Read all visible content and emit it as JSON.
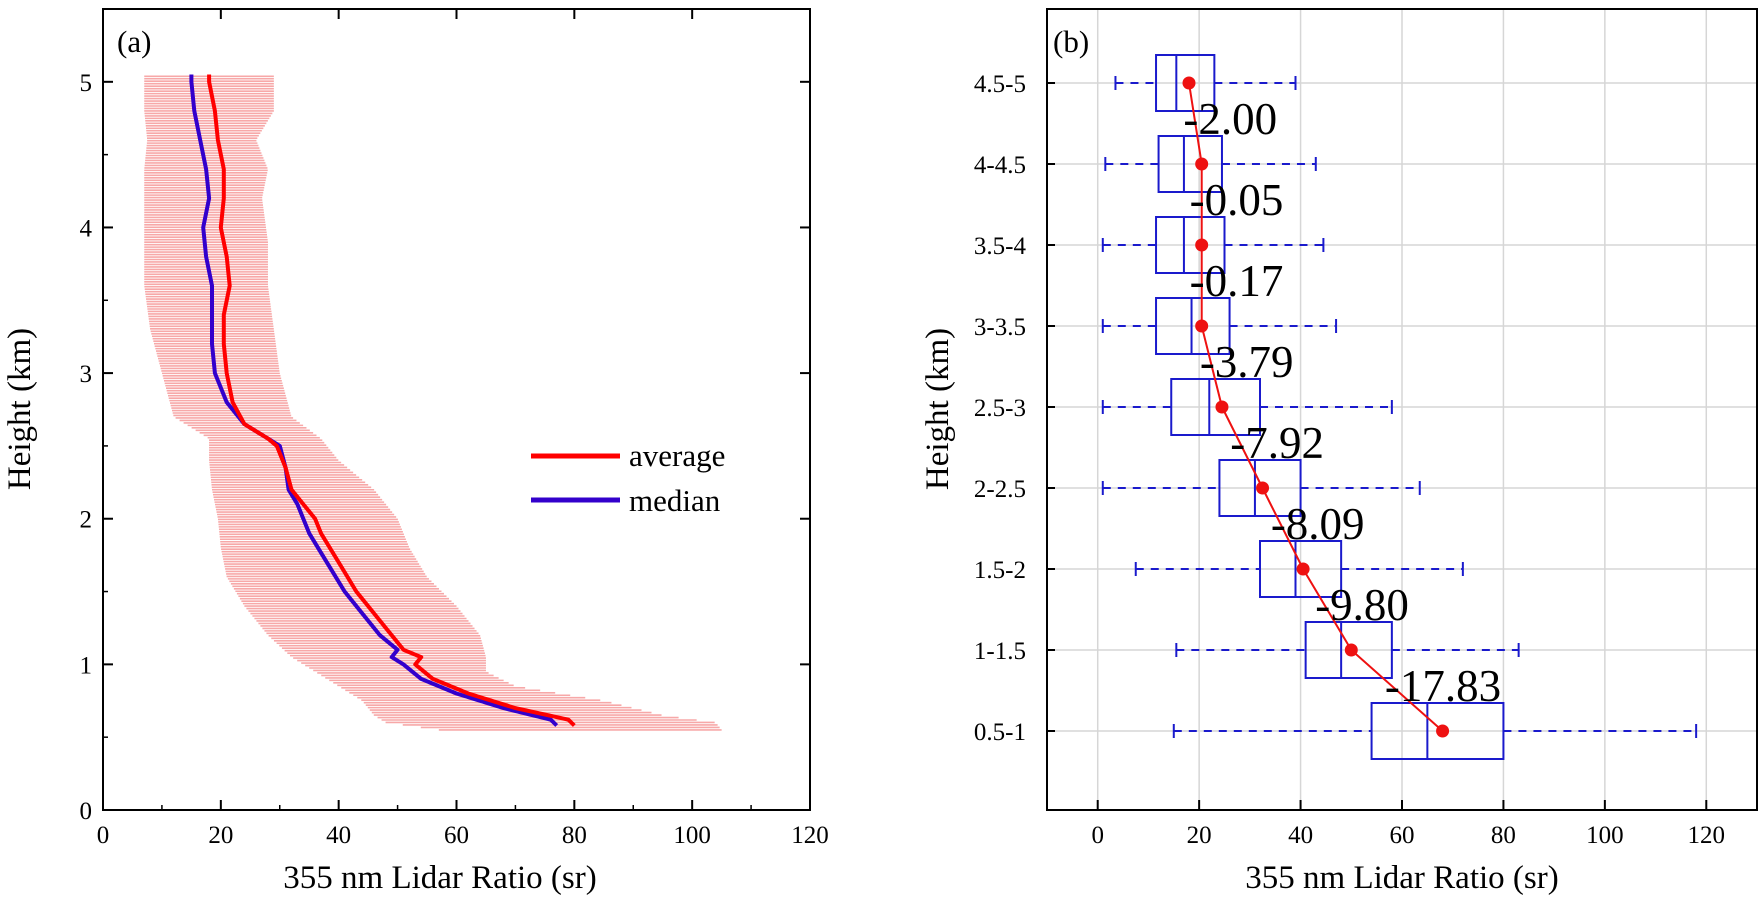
{
  "figure": {
    "panel_a_label": "(a)",
    "panel_b_label": "(b)"
  },
  "chart_data": [
    {
      "panel": "(a)",
      "type": "line",
      "xlabel": "355 nm Lidar Ratio (sr)",
      "ylabel": "Height (km)",
      "xlim": [
        0,
        120
      ],
      "ylim": [
        0,
        5.5
      ],
      "xticks": [
        0,
        20,
        40,
        60,
        80,
        100,
        120
      ],
      "yticks": [
        0,
        1,
        2,
        3,
        4,
        5
      ],
      "grid": false,
      "legend_position": "right-middle",
      "colors": {
        "average": "#ff0000",
        "median": "#3300cc",
        "band": "#f7a8a8"
      },
      "series": [
        {
          "name": "average",
          "height": [
            0.58,
            0.62,
            0.7,
            0.8,
            0.9,
            1.0,
            1.05,
            1.1,
            1.2,
            1.35,
            1.5,
            1.7,
            1.9,
            2.0,
            2.1,
            2.2,
            2.35,
            2.5,
            2.55,
            2.65,
            2.8,
            3.0,
            3.2,
            3.4,
            3.6,
            3.8,
            4.0,
            4.2,
            4.4,
            4.6,
            4.8,
            5.0,
            5.05
          ],
          "values": [
            80,
            79,
            70,
            62,
            56,
            53,
            54,
            51,
            49,
            46,
            43,
            40,
            37,
            36,
            34,
            32,
            31,
            29.5,
            28,
            24,
            22,
            21,
            20.5,
            20.5,
            21.5,
            21,
            20,
            20.5,
            20.5,
            19.5,
            19,
            18,
            18
          ]
        },
        {
          "name": "median",
          "height": [
            0.58,
            0.62,
            0.7,
            0.8,
            0.9,
            1.0,
            1.05,
            1.1,
            1.2,
            1.35,
            1.5,
            1.7,
            1.9,
            2.0,
            2.1,
            2.2,
            2.35,
            2.5,
            2.55,
            2.65,
            2.8,
            3.0,
            3.2,
            3.4,
            3.6,
            3.8,
            4.0,
            4.2,
            4.4,
            4.6,
            4.8,
            5.0,
            5.05
          ],
          "values": [
            77,
            76,
            68,
            60,
            54,
            51,
            49,
            50,
            47,
            44,
            41,
            38,
            35,
            34,
            33,
            31.5,
            31,
            30,
            28,
            24,
            21,
            19,
            18.5,
            18.5,
            18.5,
            17.5,
            17,
            18,
            17.5,
            16.5,
            15.5,
            15,
            15
          ]
        },
        {
          "name": "range",
          "type": "area",
          "height": [
            0.55,
            0.6,
            0.65,
            0.75,
            0.85,
            0.95,
            1.05,
            1.2,
            1.4,
            1.6,
            1.8,
            2.0,
            2.2,
            2.4,
            2.55,
            2.7,
            3.0,
            3.3,
            3.6,
            3.9,
            4.2,
            4.4,
            4.6,
            4.8,
            5.05
          ],
          "low": [
            57,
            48,
            46,
            44,
            40,
            36,
            32,
            28,
            24,
            21,
            20,
            19.5,
            18.5,
            18,
            18,
            12,
            10,
            8,
            7,
            7,
            7,
            7,
            7.5,
            7,
            7
          ],
          "high": [
            105,
            104,
            95,
            85,
            70,
            65,
            65,
            64,
            60,
            55,
            52,
            50,
            46,
            40,
            37,
            32,
            30,
            29,
            28,
            28,
            27,
            28,
            26,
            29,
            29
          ]
        }
      ]
    },
    {
      "panel": "(b)",
      "type": "box",
      "xlabel": "355 nm Lidar Ratio (sr)",
      "ylabel": "Height (km)",
      "xlim": [
        -10,
        130
      ],
      "xticks": [
        0,
        20,
        40,
        60,
        80,
        100,
        120
      ],
      "grid": true,
      "colors": {
        "box": "#1a1acc",
        "mean": "#ee1111"
      },
      "categories": [
        "0.5-1",
        "1-1.5",
        "1.5-2",
        "2-2.5",
        "2.5-3",
        "3-3.5",
        "3.5-4",
        "4-4.5",
        "4.5-5"
      ],
      "boxes": [
        {
          "whisker_low": 15,
          "q1": 54,
          "median": 65,
          "q3": 80,
          "whisker_high": 118,
          "mean": 68
        },
        {
          "whisker_low": 15.5,
          "q1": 41,
          "median": 48,
          "q3": 58,
          "whisker_high": 83,
          "mean": 50
        },
        {
          "whisker_low": 7.5,
          "q1": 32,
          "median": 39,
          "q3": 48,
          "whisker_high": 72,
          "mean": 40.5
        },
        {
          "whisker_low": 1,
          "q1": 24,
          "median": 31,
          "q3": 40,
          "whisker_high": 63.5,
          "mean": 32.5
        },
        {
          "whisker_low": 1,
          "q1": 14.5,
          "median": 22,
          "q3": 32,
          "whisker_high": 58,
          "mean": 24.5
        },
        {
          "whisker_low": 1,
          "q1": 11.5,
          "median": 18.5,
          "q3": 26,
          "whisker_high": 47,
          "mean": 20.5
        },
        {
          "whisker_low": 1,
          "q1": 11.5,
          "median": 17,
          "q3": 25,
          "whisker_high": 44.5,
          "mean": 20.5
        },
        {
          "whisker_low": 1.5,
          "q1": 12,
          "median": 17,
          "q3": 24.5,
          "whisker_high": 43,
          "mean": 20.5
        },
        {
          "whisker_low": 3.5,
          "q1": 11.5,
          "median": 15.5,
          "q3": 23,
          "whisker_high": 39,
          "mean": 18
        }
      ],
      "difference_labels": [
        "-17.83",
        "-9.80",
        "-8.09",
        "-7.92",
        "-3.79",
        "-0.17",
        "-0.05",
        "-2.00"
      ]
    }
  ]
}
